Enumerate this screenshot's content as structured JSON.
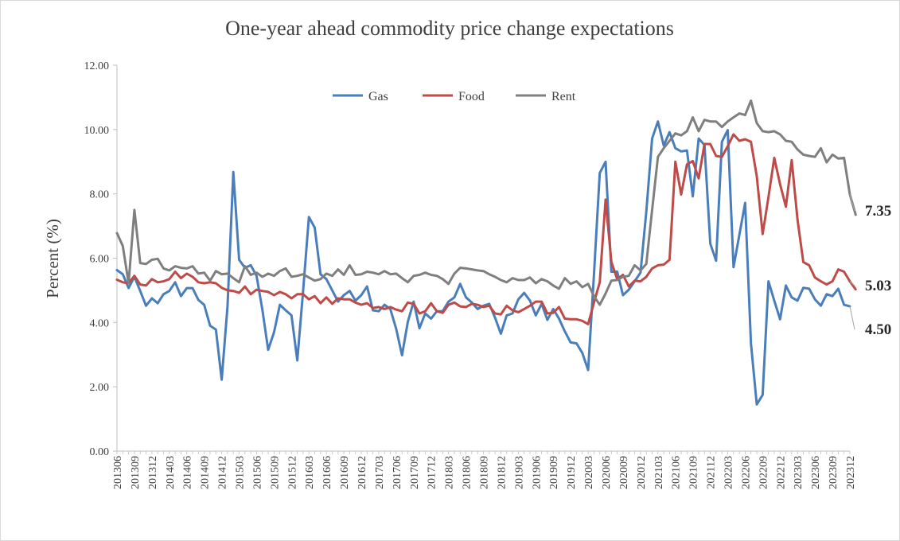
{
  "chart_data": {
    "type": "line",
    "title": "One-year ahead commodity price change expectations",
    "xlabel": "",
    "ylabel": "Percent (%)",
    "ylim": [
      0,
      12
    ],
    "y_ticks": [
      "0.00",
      "2.00",
      "4.00",
      "6.00",
      "8.00",
      "10.00",
      "12.00"
    ],
    "x_tick_labels": [
      "201306",
      "201309",
      "201312",
      "201403",
      "201406",
      "201409",
      "201412",
      "201503",
      "201506",
      "201509",
      "201512",
      "201603",
      "201606",
      "201609",
      "201612",
      "201703",
      "201706",
      "201709",
      "201712",
      "201803",
      "201806",
      "201809",
      "201812",
      "201903",
      "201906",
      "201909",
      "201912",
      "202003",
      "202006",
      "202009",
      "202012",
      "202103",
      "202106",
      "202109",
      "202112",
      "202203",
      "202206",
      "202209",
      "202212",
      "202303",
      "202306",
      "202309",
      "202312"
    ],
    "grid": false,
    "legend_position": "top-center",
    "end_labels": {
      "rent": "7.35",
      "food": "5.03",
      "gas": "4.50"
    },
    "series": [
      {
        "name": "Gas",
        "color": "#4a7ebb",
        "values": [
          5.63,
          5.5,
          5.07,
          5.42,
          4.98,
          4.52,
          4.75,
          4.6,
          4.88,
          4.98,
          5.25,
          4.82,
          5.07,
          5.07,
          4.7,
          4.55,
          3.9,
          3.78,
          2.22,
          4.5,
          8.68,
          5.95,
          5.7,
          5.78,
          5.45,
          4.4,
          3.15,
          3.7,
          4.55,
          4.38,
          4.22,
          2.82,
          4.98,
          7.28,
          6.95,
          5.5,
          5.35,
          5.0,
          4.65,
          4.85,
          4.98,
          4.68,
          4.85,
          5.12,
          4.38,
          4.35,
          4.55,
          4.42,
          3.8,
          2.98,
          4.02,
          4.65,
          3.82,
          4.28,
          4.12,
          4.35,
          4.35,
          4.65,
          4.78,
          5.2,
          4.78,
          4.62,
          4.42,
          4.52,
          4.58,
          4.15,
          3.65,
          4.22,
          4.28,
          4.72,
          4.92,
          4.68,
          4.22,
          4.58,
          4.08,
          4.42,
          4.12,
          3.72,
          3.38,
          3.35,
          3.05,
          2.52,
          5.48,
          8.65,
          9.0,
          5.58,
          5.58,
          4.85,
          5.02,
          5.28,
          5.55,
          7.45,
          9.72,
          10.25,
          9.5,
          9.92,
          9.42,
          9.32,
          9.35,
          7.92,
          9.72,
          9.52,
          6.45,
          5.92,
          9.62,
          9.98,
          5.72,
          6.72,
          7.72,
          3.35,
          1.45,
          1.75,
          5.28,
          4.68,
          4.1,
          5.15,
          4.78,
          4.68,
          5.08,
          5.05,
          4.72,
          4.52,
          4.88,
          4.82,
          5.05,
          4.55,
          4.5
        ]
      },
      {
        "name": "Food",
        "color": "#be4b48",
        "values": [
          5.33,
          5.25,
          5.22,
          5.45,
          5.18,
          5.15,
          5.35,
          5.25,
          5.28,
          5.35,
          5.58,
          5.38,
          5.52,
          5.42,
          5.25,
          5.22,
          5.25,
          5.22,
          5.08,
          5.0,
          4.98,
          4.92,
          5.12,
          4.88,
          5.02,
          4.98,
          4.95,
          4.85,
          4.95,
          4.88,
          4.75,
          4.88,
          4.88,
          4.72,
          4.82,
          4.6,
          4.78,
          4.58,
          4.75,
          4.72,
          4.72,
          4.62,
          4.55,
          4.6,
          4.45,
          4.48,
          4.42,
          4.48,
          4.4,
          4.35,
          4.62,
          4.58,
          4.28,
          4.35,
          4.6,
          4.35,
          4.3,
          4.55,
          4.62,
          4.5,
          4.48,
          4.58,
          4.55,
          4.48,
          4.52,
          4.28,
          4.25,
          4.52,
          4.38,
          4.32,
          4.42,
          4.52,
          4.65,
          4.65,
          4.28,
          4.3,
          4.48,
          4.12,
          4.1,
          4.1,
          4.05,
          3.95,
          4.62,
          5.25,
          7.82,
          5.88,
          5.35,
          5.48,
          5.12,
          5.3,
          5.28,
          5.42,
          5.68,
          5.78,
          5.8,
          5.95,
          9.0,
          7.98,
          8.92,
          9.02,
          8.48,
          9.55,
          9.55,
          9.18,
          9.15,
          9.48,
          9.85,
          9.65,
          9.7,
          9.62,
          8.55,
          6.75,
          7.9,
          9.12,
          8.3,
          7.6,
          9.05,
          7.2,
          5.88,
          5.78,
          5.4,
          5.28,
          5.18,
          5.28,
          5.65,
          5.58,
          5.28,
          5.03
        ]
      },
      {
        "name": "Rent",
        "color": "#7f7f7f",
        "values": [
          6.78,
          6.38,
          5.22,
          7.5,
          5.85,
          5.82,
          5.95,
          5.98,
          5.68,
          5.62,
          5.75,
          5.7,
          5.68,
          5.75,
          5.52,
          5.55,
          5.3,
          5.6,
          5.5,
          5.52,
          5.38,
          5.25,
          5.75,
          5.48,
          5.55,
          5.42,
          5.52,
          5.45,
          5.6,
          5.68,
          5.42,
          5.45,
          5.5,
          5.4,
          5.3,
          5.35,
          5.52,
          5.45,
          5.65,
          5.48,
          5.78,
          5.48,
          5.5,
          5.58,
          5.55,
          5.5,
          5.6,
          5.5,
          5.52,
          5.38,
          5.25,
          5.45,
          5.48,
          5.55,
          5.48,
          5.45,
          5.35,
          5.2,
          5.52,
          5.7,
          5.68,
          5.65,
          5.62,
          5.6,
          5.5,
          5.42,
          5.32,
          5.25,
          5.38,
          5.32,
          5.32,
          5.4,
          5.22,
          5.35,
          5.28,
          5.15,
          5.05,
          5.38,
          5.2,
          5.28,
          5.1,
          5.2,
          4.82,
          4.55,
          4.9,
          5.3,
          5.32,
          5.42,
          5.45,
          5.78,
          5.62,
          5.82,
          7.5,
          9.15,
          9.42,
          9.65,
          9.88,
          9.82,
          9.95,
          10.38,
          9.95,
          10.3,
          10.25,
          10.25,
          10.08,
          10.25,
          10.38,
          10.5,
          10.45,
          10.9,
          10.2,
          9.95,
          9.92,
          9.95,
          9.85,
          9.65,
          9.62,
          9.38,
          9.22,
          9.18,
          9.15,
          9.42,
          8.98,
          9.22,
          9.1,
          9.12,
          7.98,
          7.35
        ]
      }
    ]
  }
}
